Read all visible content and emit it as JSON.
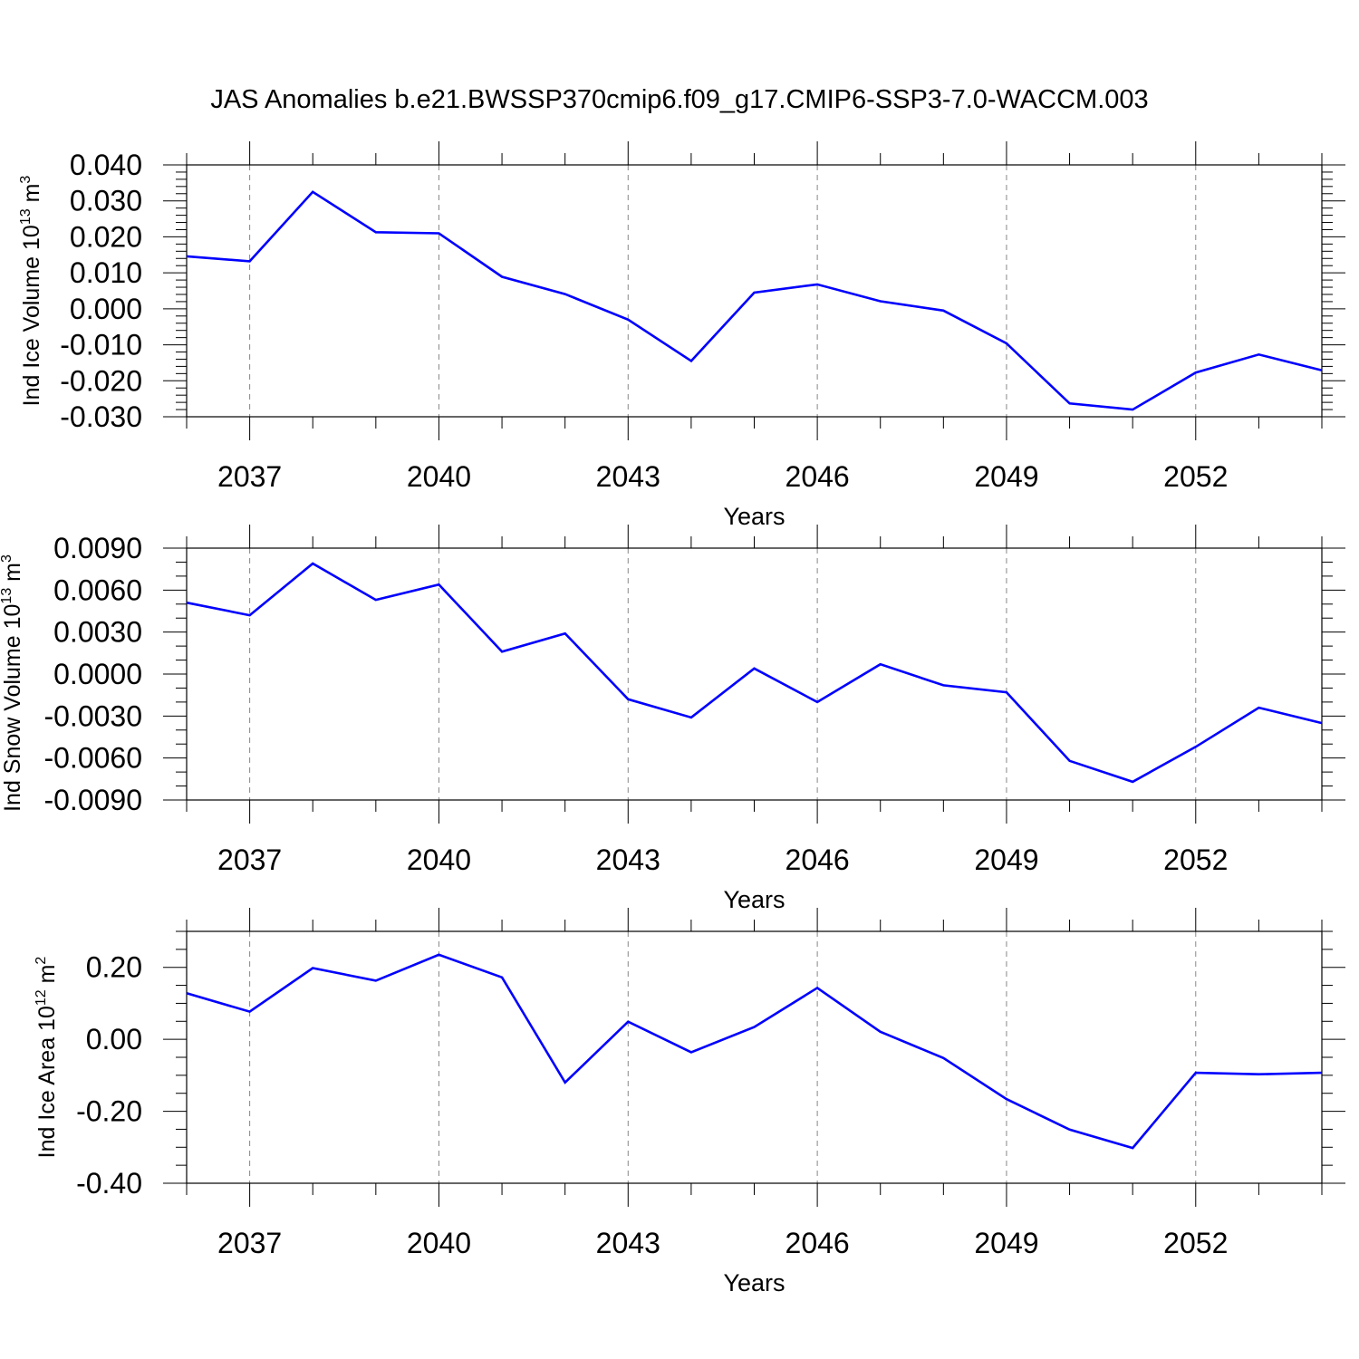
{
  "figure": {
    "title": "JAS Anomalies b.e21.BWSSP370cmip6.f09_g17.CMIP6-SSP3-7.0-WACCM.003"
  },
  "colors": {
    "line": "#0000ff",
    "axis": "#000000",
    "grid": "#888888"
  },
  "chart_data": [
    {
      "type": "line",
      "xlabel": "Years",
      "ylabel": {
        "text": "Ind Ice Volume 10",
        "exponent": "13",
        "unit": "m",
        "unit_exponent": "3"
      },
      "x_tick_labels": [
        "2037",
        "2040",
        "2043",
        "2046",
        "2049",
        "2052"
      ],
      "xlim": [
        2036,
        2054
      ],
      "ylim": [
        -0.03,
        0.04
      ],
      "y_ticks": [
        0.04,
        0.03,
        0.02,
        0.01,
        0.0,
        -0.01,
        -0.02,
        -0.03
      ],
      "y_tick_labels": [
        "0.040",
        "0.030",
        "0.020",
        "0.010",
        "0.000",
        "-0.010",
        "-0.020",
        "-0.030"
      ],
      "y_minor_step": 0.002,
      "x": [
        2036,
        2037,
        2038,
        2039,
        2040,
        2041,
        2042,
        2043,
        2044,
        2045,
        2046,
        2047,
        2048,
        2049,
        2050,
        2051,
        2052,
        2053,
        2054
      ],
      "series": [
        {
          "values": [
            0.0146,
            0.0132,
            0.0325,
            0.0213,
            0.021,
            0.0089,
            0.0041,
            -0.003,
            -0.0145,
            0.0045,
            0.0068,
            0.0021,
            -0.0005,
            -0.0096,
            -0.0263,
            -0.028,
            -0.0177,
            -0.0127,
            -0.0171
          ]
        }
      ]
    },
    {
      "type": "line",
      "xlabel": "Years",
      "ylabel": {
        "text": "Ind Snow Volume 10",
        "exponent": "13",
        "unit": "m",
        "unit_exponent": "3"
      },
      "x_tick_labels": [
        "2037",
        "2040",
        "2043",
        "2046",
        "2049",
        "2052"
      ],
      "xlim": [
        2036,
        2054
      ],
      "ylim": [
        -0.009,
        0.009
      ],
      "y_ticks": [
        0.009,
        0.006,
        0.003,
        0.0,
        -0.003,
        -0.006,
        -0.009
      ],
      "y_tick_labels": [
        "0.0090",
        "0.0060",
        "0.0030",
        "0.0000",
        "-0.0030",
        "-0.0060",
        "-0.0090"
      ],
      "y_minor_step": 0.001,
      "x": [
        2036,
        2037,
        2038,
        2039,
        2040,
        2041,
        2042,
        2043,
        2044,
        2045,
        2046,
        2047,
        2048,
        2049,
        2050,
        2051,
        2052,
        2053,
        2054
      ],
      "series": [
        {
          "values": [
            0.0051,
            0.0042,
            0.0079,
            0.0053,
            0.0064,
            0.0016,
            0.0029,
            -0.0018,
            -0.0031,
            0.0004,
            -0.002,
            0.0007,
            -0.0008,
            -0.0013,
            -0.0062,
            -0.0077,
            -0.0052,
            -0.0024,
            -0.0035
          ]
        }
      ]
    },
    {
      "type": "line",
      "xlabel": "Years",
      "ylabel": {
        "text": "Ind Ice Area 10",
        "exponent": "12",
        "unit": "m",
        "unit_exponent": "2"
      },
      "x_tick_labels": [
        "2037",
        "2040",
        "2043",
        "2046",
        "2049",
        "2052"
      ],
      "xlim": [
        2036,
        2054
      ],
      "ylim": [
        -0.4,
        0.3
      ],
      "y_ticks": [
        0.2,
        0.0,
        -0.2,
        -0.4
      ],
      "y_tick_labels": [
        "0.20",
        "0.00",
        "-0.20",
        "-0.40"
      ],
      "y_minor_step": 0.05,
      "x": [
        2036,
        2037,
        2038,
        2039,
        2040,
        2041,
        2042,
        2043,
        2044,
        2045,
        2046,
        2047,
        2048,
        2049,
        2050,
        2051,
        2052,
        2053,
        2054
      ],
      "series": [
        {
          "values": [
            0.128,
            0.077,
            0.198,
            0.163,
            0.235,
            0.172,
            -0.12,
            0.049,
            -0.036,
            0.034,
            0.143,
            0.021,
            -0.052,
            -0.166,
            -0.251,
            -0.302,
            -0.093,
            -0.097,
            -0.093
          ]
        }
      ]
    }
  ]
}
